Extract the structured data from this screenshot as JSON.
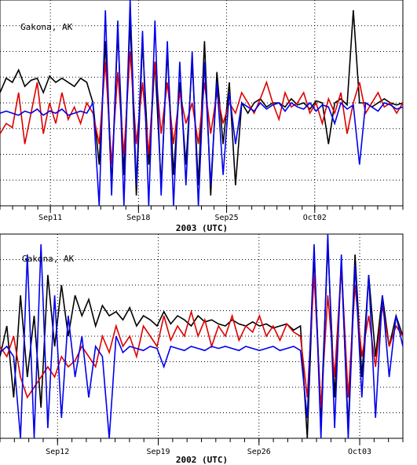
{
  "chart_data": [
    {
      "type": "line",
      "station_label": "Gakona, AK",
      "xlabel": "2003 (UTC)",
      "ylabel": "",
      "title": "",
      "x_range": [
        "2003-09-07",
        "2003-10-09"
      ],
      "tick_labels": [
        {
          "label": "Sep11",
          "date": "2003-09-11"
        },
        {
          "label": "Sep18",
          "date": "2003-09-18"
        },
        {
          "label": "Sep25",
          "date": "2003-09-25"
        },
        {
          "label": "Oct02",
          "date": "2003-10-02"
        }
      ],
      "grid": true,
      "series": [
        {
          "color": "#000000",
          "values": [
            0.55,
            0.62,
            0.6,
            0.66,
            0.58,
            0.61,
            0.62,
            0.55,
            0.63,
            0.6,
            0.62,
            0.6,
            0.58,
            0.62,
            0.6,
            0.5,
            0.2,
            0.8,
            0.1,
            0.85,
            0.15,
            0.9,
            0.05,
            0.8,
            0.2,
            0.7,
            0.1,
            0.75,
            0.15,
            0.6,
            0.2,
            0.7,
            0.1,
            0.8,
            0.05,
            0.65,
            0.3,
            0.6,
            0.1,
            0.5,
            0.45,
            0.5,
            0.52,
            0.48,
            0.5,
            0.5,
            0.48,
            0.52,
            0.49,
            0.5,
            0.47,
            0.51,
            0.5,
            0.3,
            0.5,
            0.52,
            0.49,
            0.95,
            0.5,
            0.5,
            0.48,
            0.5,
            0.52,
            0.5,
            0.49,
            0.5
          ]
        },
        {
          "color": "#dd0000",
          "values": [
            0.35,
            0.4,
            0.38,
            0.55,
            0.3,
            0.45,
            0.6,
            0.35,
            0.5,
            0.4,
            0.55,
            0.42,
            0.48,
            0.4,
            0.5,
            0.45,
            0.3,
            0.7,
            0.2,
            0.65,
            0.25,
            0.75,
            0.3,
            0.6,
            0.25,
            0.7,
            0.35,
            0.6,
            0.3,
            0.55,
            0.4,
            0.5,
            0.3,
            0.6,
            0.35,
            0.55,
            0.4,
            0.5,
            0.45,
            0.55,
            0.5,
            0.45,
            0.52,
            0.6,
            0.5,
            0.42,
            0.55,
            0.48,
            0.5,
            0.55,
            0.45,
            0.5,
            0.4,
            0.52,
            0.45,
            0.55,
            0.35,
            0.5,
            0.6,
            0.45,
            0.5,
            0.55,
            0.48,
            0.5,
            0.45,
            0.5
          ]
        },
        {
          "color": "#0000ee",
          "values": [
            0.45,
            0.46,
            0.45,
            0.44,
            0.46,
            0.45,
            0.47,
            0.44,
            0.46,
            0.45,
            0.47,
            0.44,
            0.45,
            0.46,
            0.45,
            0.5,
            0.0,
            0.95,
            0.05,
            0.9,
            0.0,
            1.0,
            0.1,
            0.85,
            0.0,
            0.9,
            0.05,
            0.8,
            0.0,
            0.7,
            0.1,
            0.75,
            0.0,
            0.7,
            0.1,
            0.6,
            0.15,
            0.55,
            0.3,
            0.5,
            0.48,
            0.46,
            0.5,
            0.47,
            0.49,
            0.5,
            0.46,
            0.5,
            0.48,
            0.47,
            0.5,
            0.46,
            0.49,
            0.48,
            0.4,
            0.5,
            0.47,
            0.49,
            0.2,
            0.5,
            0.48,
            0.46,
            0.5,
            0.49,
            0.47,
            0.48
          ]
        }
      ]
    },
    {
      "type": "line",
      "station_label": "Gakona, AK",
      "xlabel": "2002 (UTC)",
      "ylabel": "",
      "title": "",
      "x_range": [
        "2002-09-08",
        "2002-10-06"
      ],
      "tick_labels": [
        {
          "label": "Sep12",
          "date": "2002-09-12"
        },
        {
          "label": "Sep19",
          "date": "2002-09-19"
        },
        {
          "label": "Sep26",
          "date": "2002-09-26"
        },
        {
          "label": "Oct03",
          "date": "2002-10-03"
        }
      ],
      "grid": true,
      "series": [
        {
          "color": "#000000",
          "values": [
            0.4,
            0.55,
            0.2,
            0.7,
            0.3,
            0.6,
            0.15,
            0.8,
            0.45,
            0.75,
            0.5,
            0.7,
            0.6,
            0.68,
            0.55,
            0.65,
            0.6,
            0.62,
            0.58,
            0.64,
            0.55,
            0.6,
            0.58,
            0.55,
            0.62,
            0.56,
            0.6,
            0.58,
            0.55,
            0.6,
            0.57,
            0.58,
            0.56,
            0.55,
            0.58,
            0.56,
            0.55,
            0.57,
            0.55,
            0.56,
            0.54,
            0.55,
            0.56,
            0.53,
            0.55,
            0.0,
            0.9,
            0.1,
            0.95,
            0.2,
            0.85,
            0.05,
            0.9,
            0.3,
            0.8,
            0.4,
            0.7,
            0.45,
            0.6,
            0.5
          ]
        },
        {
          "color": "#dd0000",
          "values": [
            0.45,
            0.4,
            0.5,
            0.3,
            0.2,
            0.25,
            0.3,
            0.35,
            0.3,
            0.4,
            0.35,
            0.38,
            0.45,
            0.4,
            0.35,
            0.5,
            0.42,
            0.55,
            0.45,
            0.5,
            0.4,
            0.55,
            0.5,
            0.45,
            0.6,
            0.48,
            0.55,
            0.5,
            0.62,
            0.5,
            0.58,
            0.45,
            0.55,
            0.5,
            0.6,
            0.48,
            0.55,
            0.52,
            0.6,
            0.5,
            0.55,
            0.48,
            0.56,
            0.52,
            0.5,
            0.2,
            0.8,
            0.15,
            0.7,
            0.3,
            0.85,
            0.2,
            0.75,
            0.4,
            0.6,
            0.35,
            0.65,
            0.45,
            0.55,
            0.5
          ]
        },
        {
          "color": "#0000ee",
          "values": [
            0.42,
            0.45,
            0.4,
            0.0,
            0.9,
            0.0,
            0.95,
            0.05,
            0.7,
            0.1,
            0.6,
            0.3,
            0.5,
            0.2,
            0.45,
            0.4,
            0.0,
            0.5,
            0.42,
            0.45,
            0.44,
            0.43,
            0.45,
            0.44,
            0.35,
            0.45,
            0.44,
            0.43,
            0.45,
            0.44,
            0.43,
            0.45,
            0.44,
            0.45,
            0.44,
            0.43,
            0.45,
            0.44,
            0.43,
            0.44,
            0.45,
            0.43,
            0.44,
            0.45,
            0.43,
            0.1,
            0.95,
            0.0,
            1.0,
            0.05,
            0.9,
            0.0,
            0.85,
            0.2,
            0.8,
            0.1,
            0.7,
            0.3,
            0.6,
            0.45
          ]
        }
      ]
    }
  ]
}
